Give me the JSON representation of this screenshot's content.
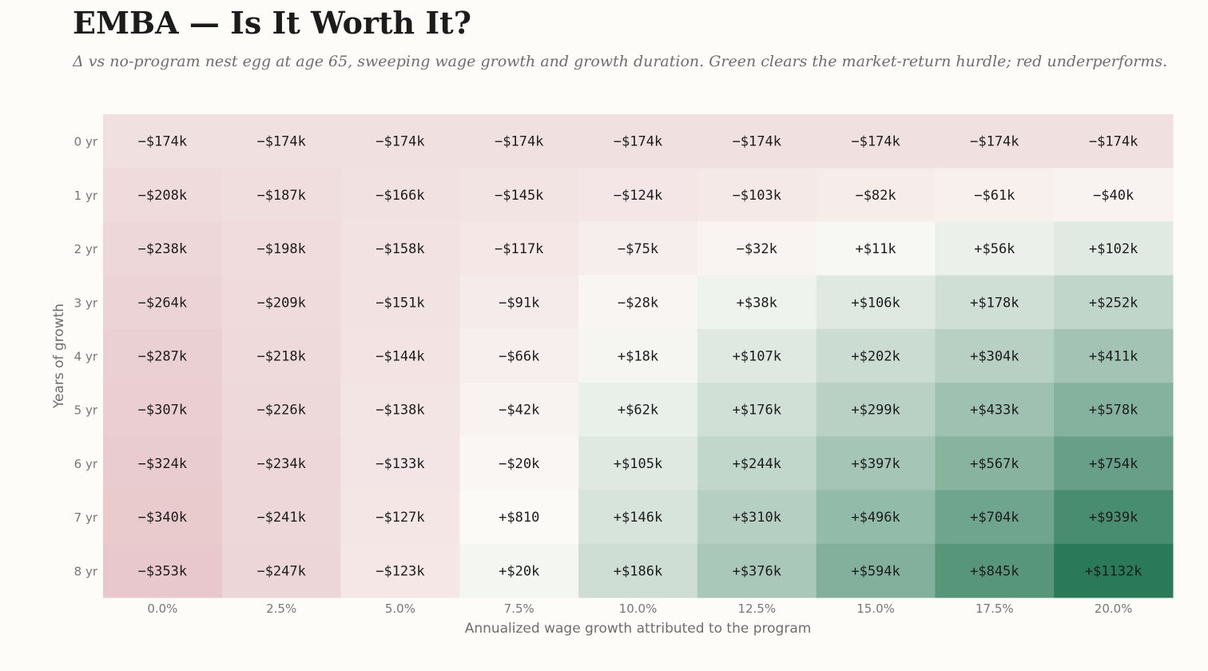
{
  "header": {
    "title": "EMBA — Is It Worth It?",
    "subtitle": "Δ vs no-program nest egg at age 65, sweeping wage growth and growth duration. Green clears the market-return hurdle; red underperforms."
  },
  "colors": {
    "background": "#fdfcf8",
    "negative_max": "#e8c8cc",
    "neutral": "#fbfaf6",
    "positive_max": "#2a7a5a"
  },
  "chart_data": {
    "type": "heatmap",
    "xlabel": "Annualized wage growth attributed to the program",
    "ylabel": "Years of growth",
    "x": [
      "0.0%",
      "2.5%",
      "5.0%",
      "7.5%",
      "10.0%",
      "12.5%",
      "15.0%",
      "17.5%",
      "20.0%"
    ],
    "y": [
      "0 yr",
      "1 yr",
      "2 yr",
      "3 yr",
      "4 yr",
      "5 yr",
      "6 yr",
      "7 yr",
      "8 yr"
    ],
    "values": [
      [
        -174,
        -174,
        -174,
        -174,
        -174,
        -174,
        -174,
        -174,
        -174
      ],
      [
        -208,
        -187,
        -166,
        -145,
        -124,
        -103,
        -82,
        -61,
        -40
      ],
      [
        -238,
        -198,
        -158,
        -117,
        -75,
        -32,
        11,
        56,
        102
      ],
      [
        -264,
        -209,
        -151,
        -91,
        -28,
        38,
        106,
        178,
        252
      ],
      [
        -287,
        -218,
        -144,
        -66,
        18,
        107,
        202,
        304,
        411
      ],
      [
        -307,
        -226,
        -138,
        -42,
        62,
        176,
        299,
        433,
        578
      ],
      [
        -324,
        -234,
        -133,
        -20,
        105,
        244,
        397,
        567,
        754
      ],
      [
        -340,
        -241,
        -127,
        0.81,
        146,
        310,
        496,
        704,
        939
      ],
      [
        -353,
        -247,
        -123,
        20,
        186,
        376,
        594,
        845,
        1132
      ]
    ],
    "labels": [
      [
        "−$174k",
        "−$174k",
        "−$174k",
        "−$174k",
        "−$174k",
        "−$174k",
        "−$174k",
        "−$174k",
        "−$174k"
      ],
      [
        "−$208k",
        "−$187k",
        "−$166k",
        "−$145k",
        "−$124k",
        "−$103k",
        "−$82k",
        "−$61k",
        "−$40k"
      ],
      [
        "−$238k",
        "−$198k",
        "−$158k",
        "−$117k",
        "−$75k",
        "−$32k",
        "+$11k",
        "+$56k",
        "+$102k"
      ],
      [
        "−$264k",
        "−$209k",
        "−$151k",
        "−$91k",
        "−$28k",
        "+$38k",
        "+$106k",
        "+$178k",
        "+$252k"
      ],
      [
        "−$287k",
        "−$218k",
        "−$144k",
        "−$66k",
        "+$18k",
        "+$107k",
        "+$202k",
        "+$304k",
        "+$411k"
      ],
      [
        "−$307k",
        "−$226k",
        "−$138k",
        "−$42k",
        "+$62k",
        "+$176k",
        "+$299k",
        "+$433k",
        "+$578k"
      ],
      [
        "−$324k",
        "−$234k",
        "−$133k",
        "−$20k",
        "+$105k",
        "+$244k",
        "+$397k",
        "+$567k",
        "+$754k"
      ],
      [
        "−$340k",
        "−$241k",
        "−$127k",
        "+$810",
        "+$146k",
        "+$310k",
        "+$496k",
        "+$704k",
        "+$939k"
      ],
      [
        "−$353k",
        "−$247k",
        "−$123k",
        "+$20k",
        "+$186k",
        "+$376k",
        "+$594k",
        "+$845k",
        "+$1132k"
      ]
    ],
    "legend": "none",
    "grid": false
  }
}
